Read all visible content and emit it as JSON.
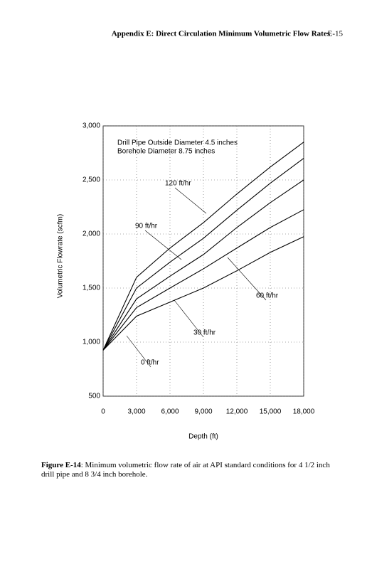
{
  "header": {
    "title": "Appendix E: Direct Circulation Minimum Volumetric Flow Rates",
    "page": "E-15"
  },
  "caption": {
    "label": "Figure E-14",
    "text": ": Minimum volumetric flow rate of air at API standard conditions for 4 1/2 inch drill pipe and 8 3/4 inch borehole."
  },
  "chart_data": {
    "type": "line",
    "annotations": [
      "Drill Pipe Outside Diameter 4.5 inches",
      "Borehole Diameter 8.75 inches"
    ],
    "x_label": "Depth (ft)",
    "y_label": "Volumetric Flowrate (scfm)",
    "x": [
      0,
      3000,
      6000,
      9000,
      12000,
      15000,
      18000
    ],
    "series": [
      {
        "name": "120 ft/hr",
        "color": "#000000",
        "values": [
          925,
          1600,
          1870,
          2105,
          2370,
          2620,
          2850
        ]
      },
      {
        "name": "90 ft/hr",
        "color": "#000000",
        "values": [
          925,
          1500,
          1740,
          1960,
          2220,
          2470,
          2700
        ]
      },
      {
        "name": "60 ft/hr",
        "color": "#000000",
        "values": [
          925,
          1400,
          1610,
          1810,
          2060,
          2290,
          2500
        ]
      },
      {
        "name": "30 ft/hr",
        "color": "#000000",
        "values": [
          925,
          1320,
          1500,
          1678,
          1870,
          2060,
          2225
        ]
      },
      {
        "name": "0 ft/hr",
        "color": "#000000",
        "values": [
          925,
          1240,
          1370,
          1500,
          1660,
          1830,
          1975
        ]
      }
    ],
    "xlim": [
      0,
      18000
    ],
    "xticks": [
      0,
      {
        "value": 3000,
        "label": "3,000"
      },
      {
        "value": 6000,
        "label": "6,000"
      },
      {
        "value": 9000,
        "label": "9,000"
      },
      {
        "value": 12000,
        "label": "12,000"
      },
      {
        "value": 15000,
        "label": "15,000"
      },
      {
        "value": 18000,
        "label": "18,000"
      }
    ],
    "ylim": [
      500,
      3000
    ],
    "yticks": [
      500,
      {
        "value": 1000,
        "label": "1,000"
      },
      {
        "value": 1500,
        "label": "1,500"
      },
      {
        "value": 2000,
        "label": "2,000"
      },
      {
        "value": 2500,
        "label": "2,500"
      },
      {
        "value": 3000,
        "label": "3,000"
      }
    ],
    "grid": true
  }
}
